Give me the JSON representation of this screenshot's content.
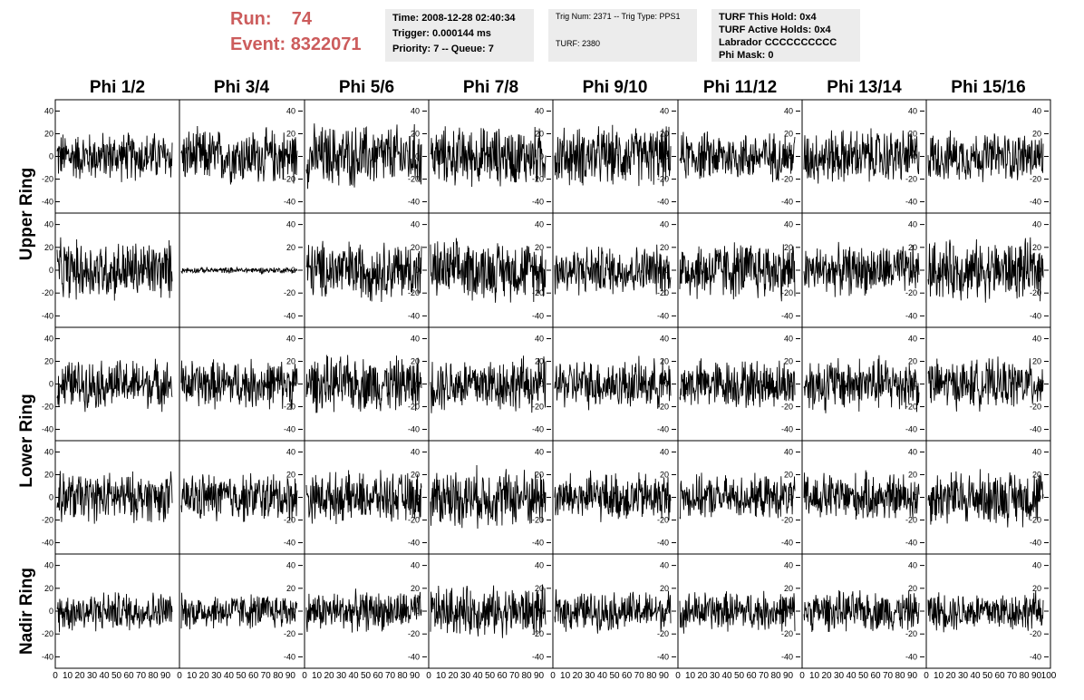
{
  "header": {
    "run_label": "Run:",
    "run_value": "74",
    "event_label": "Event:",
    "event_value": "8322071"
  },
  "info_boxes": {
    "time": [
      "Time: 2008-12-28 02:40:34",
      "Trigger: 0.000144 ms",
      "Priority: 7 -- Queue: 7"
    ],
    "trig": [
      "Trig Num: 2371 -- Trig Type: PPS1",
      "",
      "TURF: 2380"
    ],
    "turf": [
      "TURF This Hold: 0x4",
      "TURF Active Holds: 0x4",
      "Labrador CCCCCCCCCC",
      "Phi Mask: 0"
    ]
  },
  "columns": [
    "Phi 1/2",
    "Phi 3/4",
    "Phi 5/6",
    "Phi 7/8",
    "Phi 9/10",
    "Phi 11/12",
    "Phi 13/14",
    "Phi 15/16"
  ],
  "ring_labels": [
    {
      "label": "Upper Ring",
      "spans_rows": [
        0,
        1
      ]
    },
    {
      "label": "Lower Ring",
      "spans_rows": [
        2,
        3
      ]
    },
    {
      "label": "Nadir Ring",
      "spans_rows": [
        4,
        4
      ]
    }
  ],
  "chart_data": {
    "type": "line",
    "description_rows": 5,
    "description_cols": 8,
    "xlim": [
      0,
      100
    ],
    "ylim": [
      -50,
      50
    ],
    "y_ticks": [
      -40,
      -20,
      0,
      20,
      40
    ],
    "x_tick_labels": [
      "0",
      "10",
      "20",
      "30",
      "40",
      "50",
      "60",
      "70",
      "80",
      "90",
      "100"
    ],
    "panel_amplitudes": [
      [
        25,
        28,
        32,
        30,
        30,
        25,
        28,
        25
      ],
      [
        30,
        3,
        30,
        30,
        25,
        30,
        25,
        30
      ],
      [
        25,
        25,
        28,
        28,
        25,
        25,
        28,
        25
      ],
      [
        25,
        25,
        25,
        30,
        25,
        22,
        25,
        28
      ],
      [
        20,
        18,
        20,
        25,
        20,
        20,
        20,
        20
      ]
    ],
    "y_axis_side_by_column": [
      "left",
      "right",
      "right",
      "right",
      "right",
      "right",
      "right",
      "right"
    ],
    "line_color": "#000000"
  }
}
